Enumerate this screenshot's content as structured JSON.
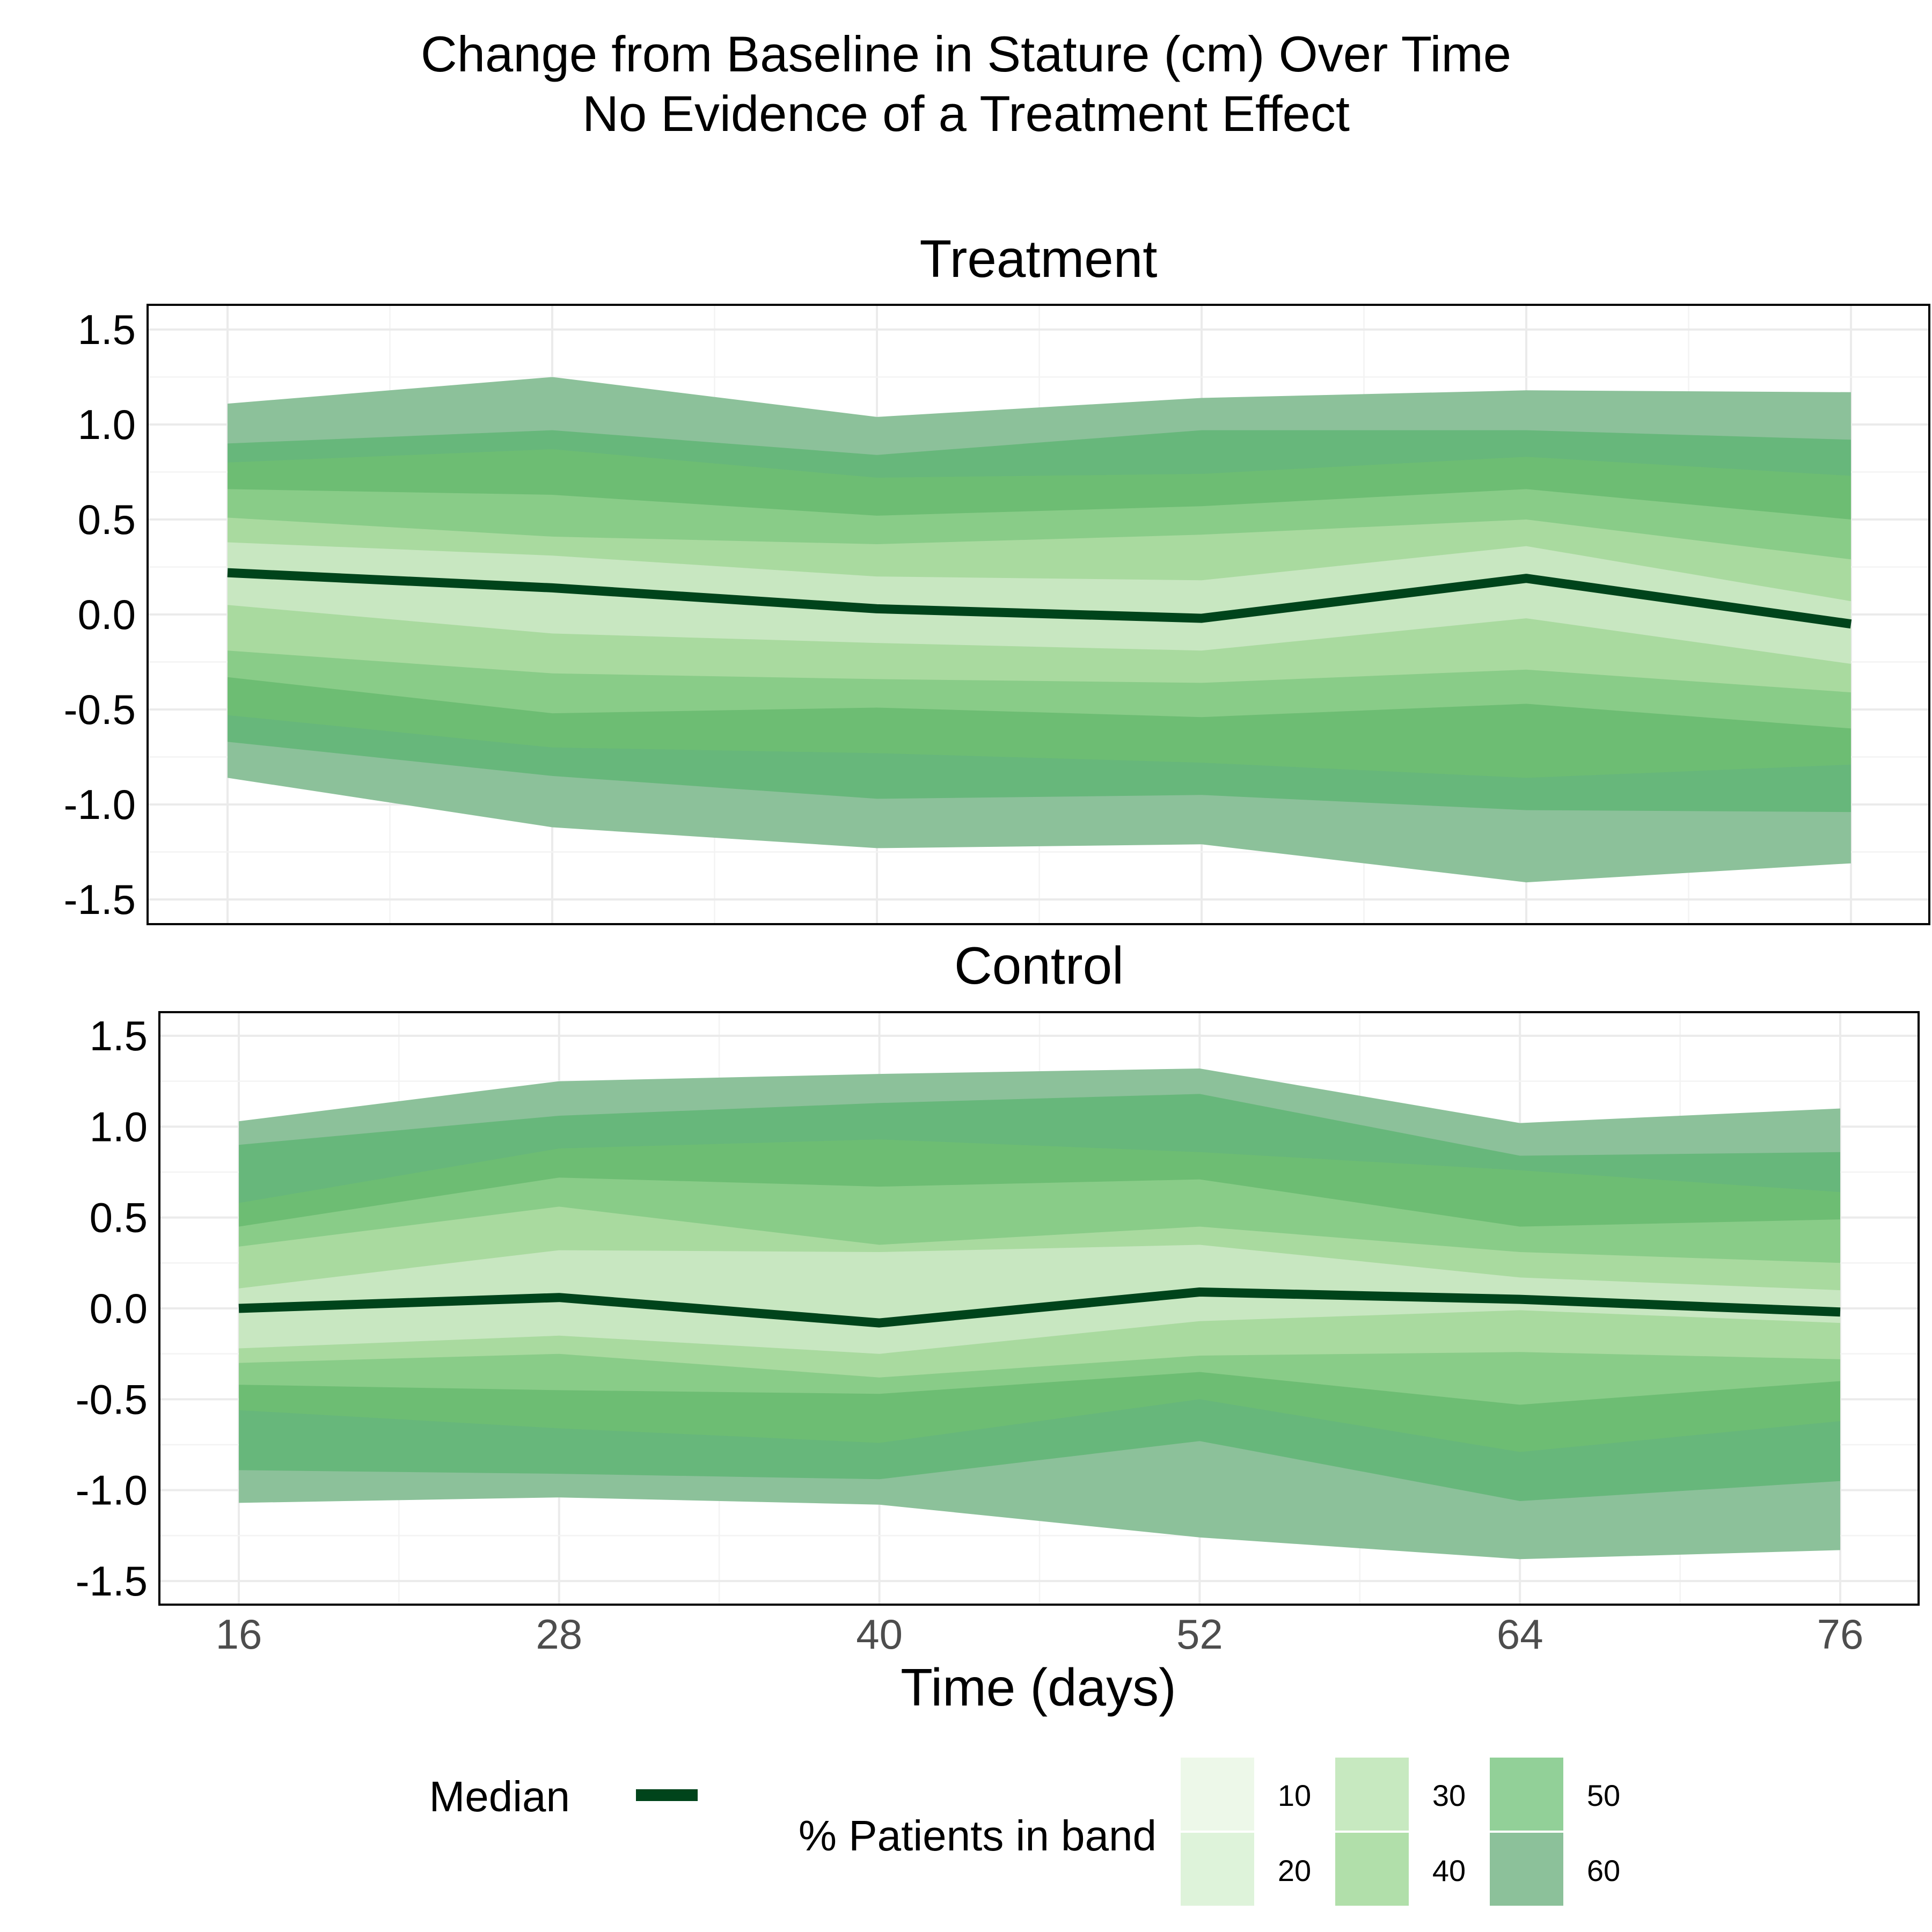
{
  "chart_data": {
    "type": "area",
    "title": "Change from Baseline in Stature (cm) Over Time",
    "subtitle": "No Evidence of a Treatment Effect",
    "xlabel": "Time (days)",
    "ylabel": "",
    "x": [
      16,
      28,
      40,
      52,
      64,
      76
    ],
    "x_ticks": [
      "16",
      "28",
      "40",
      "52",
      "64",
      "76"
    ],
    "xlim": [
      13,
      77
    ],
    "ylim": [
      -1.63,
      1.63
    ],
    "y_ticks": [
      "1.5",
      "1.0",
      "0.5",
      "0.0",
      "-0.5",
      "-1.0",
      "-1.5"
    ],
    "grid": true,
    "legend_position": "bottom",
    "median_label": "Median",
    "band_legend_title": "% Patients in band",
    "band_levels": [
      "10",
      "20",
      "30",
      "40",
      "50",
      "60"
    ],
    "band_colors": [
      "#edf8e9",
      "#def3da",
      "#c7e9c0",
      "#b1dfaa",
      "#92d098",
      "#8cc19a"
    ],
    "median_color": "#00441b",
    "panels": [
      {
        "name": "Treatment",
        "median": [
          0.22,
          0.14,
          0.03,
          -0.02,
          0.19,
          -0.05
        ],
        "bands": [
          {
            "level": "60",
            "color": "#8cc19a",
            "upper": [
              1.11,
              1.25,
              1.04,
              1.14,
              1.18,
              1.17
            ],
            "lower": [
              -0.86,
              -1.12,
              -1.23,
              -1.21,
              -1.41,
              -1.31
            ]
          },
          {
            "level": "50",
            "color": "#67b77b",
            "upper": [
              0.9,
              0.97,
              0.84,
              0.97,
              0.97,
              0.92
            ],
            "lower": [
              -0.67,
              -0.85,
              -0.97,
              -0.95,
              -1.03,
              -1.04
            ]
          },
          {
            "level": "40",
            "color": "#6dbd73",
            "upper": [
              0.8,
              0.87,
              0.72,
              0.74,
              0.83,
              0.73
            ],
            "lower": [
              -0.53,
              -0.7,
              -0.73,
              -0.78,
              -0.86,
              -0.79
            ]
          },
          {
            "level": "30",
            "color": "#89cc88",
            "upper": [
              0.66,
              0.63,
              0.52,
              0.57,
              0.66,
              0.5
            ],
            "lower": [
              -0.33,
              -0.52,
              -0.49,
              -0.54,
              -0.47,
              -0.6
            ]
          },
          {
            "level": "20",
            "color": "#a9da9f",
            "upper": [
              0.51,
              0.41,
              0.37,
              0.42,
              0.5,
              0.29
            ],
            "lower": [
              -0.19,
              -0.31,
              -0.34,
              -0.36,
              -0.29,
              -0.41
            ]
          },
          {
            "level": "10",
            "color": "#c8e7c1",
            "upper": [
              0.38,
              0.31,
              0.2,
              0.18,
              0.36,
              0.07
            ],
            "lower": [
              0.05,
              -0.1,
              -0.15,
              -0.19,
              -0.02,
              -0.26
            ]
          }
        ]
      },
      {
        "name": "Control",
        "median": [
          0.0,
          0.06,
          -0.08,
          0.09,
          0.05,
          -0.02
        ],
        "bands": [
          {
            "level": "60",
            "color": "#8cc19a",
            "upper": [
              1.03,
              1.25,
              1.29,
              1.32,
              1.02,
              1.1
            ],
            "lower": [
              -1.07,
              -1.04,
              -1.08,
              -1.26,
              -1.38,
              -1.33
            ]
          },
          {
            "level": "50",
            "color": "#67b77b",
            "upper": [
              0.9,
              1.06,
              1.13,
              1.18,
              0.84,
              0.86
            ],
            "lower": [
              -0.89,
              -0.91,
              -0.94,
              -0.73,
              -1.06,
              -0.95
            ]
          },
          {
            "level": "40",
            "color": "#6dbd73",
            "upper": [
              0.58,
              0.88,
              0.93,
              0.86,
              0.76,
              0.64
            ],
            "lower": [
              -0.56,
              -0.66,
              -0.74,
              -0.5,
              -0.79,
              -0.62
            ]
          },
          {
            "level": "30",
            "color": "#89cc88",
            "upper": [
              0.45,
              0.72,
              0.67,
              0.71,
              0.45,
              0.49
            ],
            "lower": [
              -0.42,
              -0.45,
              -0.47,
              -0.35,
              -0.53,
              -0.4
            ]
          },
          {
            "level": "20",
            "color": "#a9da9f",
            "upper": [
              0.34,
              0.56,
              0.35,
              0.45,
              0.31,
              0.25
            ],
            "lower": [
              -0.3,
              -0.25,
              -0.38,
              -0.26,
              -0.24,
              -0.28
            ]
          },
          {
            "level": "10",
            "color": "#c8e7c1",
            "upper": [
              0.11,
              0.32,
              0.31,
              0.35,
              0.17,
              0.1
            ],
            "lower": [
              -0.22,
              -0.15,
              -0.25,
              -0.07,
              -0.01,
              -0.08
            ]
          }
        ]
      }
    ]
  }
}
